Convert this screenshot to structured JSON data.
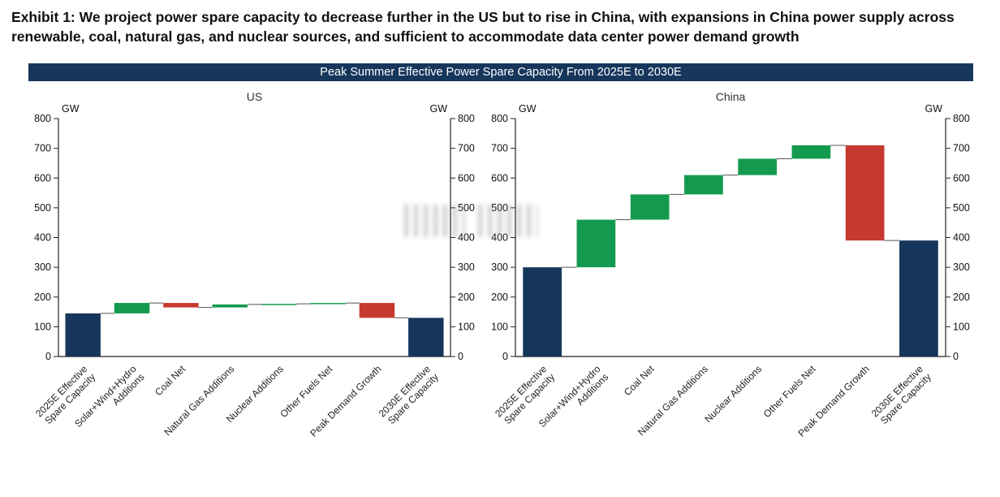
{
  "exhibit_title": "Exhibit 1: We project power spare capacity to decrease further in the US but to rise in China, with expansions in China power supply across renewable, coal, natural gas, and nuclear sources, and sufficient to accommodate data center power demand growth",
  "chart_header": "Peak Summer Effective Power Spare Capacity From 2025E to 2030E",
  "colors": {
    "navy": "#16365c",
    "green": "#149a4e",
    "red": "#c6392f",
    "axis": "#222222",
    "connector": "#555555",
    "header_bg": "#16365c",
    "header_text": "#ffffff"
  },
  "chart_data": [
    {
      "type": "waterfall",
      "title": "US",
      "ylabel": "GW",
      "ylim": [
        0,
        800
      ],
      "ytick_step": 100,
      "categories": [
        "2025E Effective Spare Capacity",
        "Solar+Wind+Hydro Additions",
        "Coal Net",
        "Natural Gas Additions",
        "Nuclear Additions",
        "Other Fuels Net",
        "Peak Demand Growth",
        "2030E Effective Spare Capacity"
      ],
      "steps": [
        {
          "label": "2025E Effective\nSpare Capacity",
          "kind": "total",
          "value": 145
        },
        {
          "label": "Solar+Wind+Hydro\nAdditions",
          "kind": "change",
          "value": 35
        },
        {
          "label": "Coal Net",
          "kind": "change",
          "value": -15
        },
        {
          "label": "Natural Gas Additions",
          "kind": "change",
          "value": 10
        },
        {
          "label": "Nuclear Additions",
          "kind": "change",
          "value": 2
        },
        {
          "label": "Other Fuels Net",
          "kind": "change",
          "value": 3
        },
        {
          "label": "Peak Demand Growth",
          "kind": "change",
          "value": -50
        },
        {
          "label": "2030E Effective\nSpare Capacity",
          "kind": "total",
          "value": 130
        }
      ]
    },
    {
      "type": "waterfall",
      "title": "China",
      "ylabel": "GW",
      "ylim": [
        0,
        800
      ],
      "ytick_step": 100,
      "categories": [
        "2025E Effective Spare Capacity",
        "Solar+Wind+Hydro Additions",
        "Coal Net",
        "Natural Gas Additions",
        "Nuclear Additions",
        "Other Fuels Net",
        "Peak Demand Growth",
        "2030E Effective Spare Capacity"
      ],
      "steps": [
        {
          "label": "2025E Effective\nSpare Capacity",
          "kind": "total",
          "value": 300
        },
        {
          "label": "Solar+Wind+Hydro\nAdditions",
          "kind": "change",
          "value": 160
        },
        {
          "label": "Coal Net",
          "kind": "change",
          "value": 85
        },
        {
          "label": "Natural Gas Additions",
          "kind": "change",
          "value": 65
        },
        {
          "label": "Nuclear Additions",
          "kind": "change",
          "value": 55
        },
        {
          "label": "Other Fuels Net",
          "kind": "change",
          "value": 45
        },
        {
          "label": "Peak Demand Growth",
          "kind": "change",
          "value": -320
        },
        {
          "label": "2030E Effective\nSpare Capacity",
          "kind": "total",
          "value": 390
        }
      ]
    }
  ]
}
